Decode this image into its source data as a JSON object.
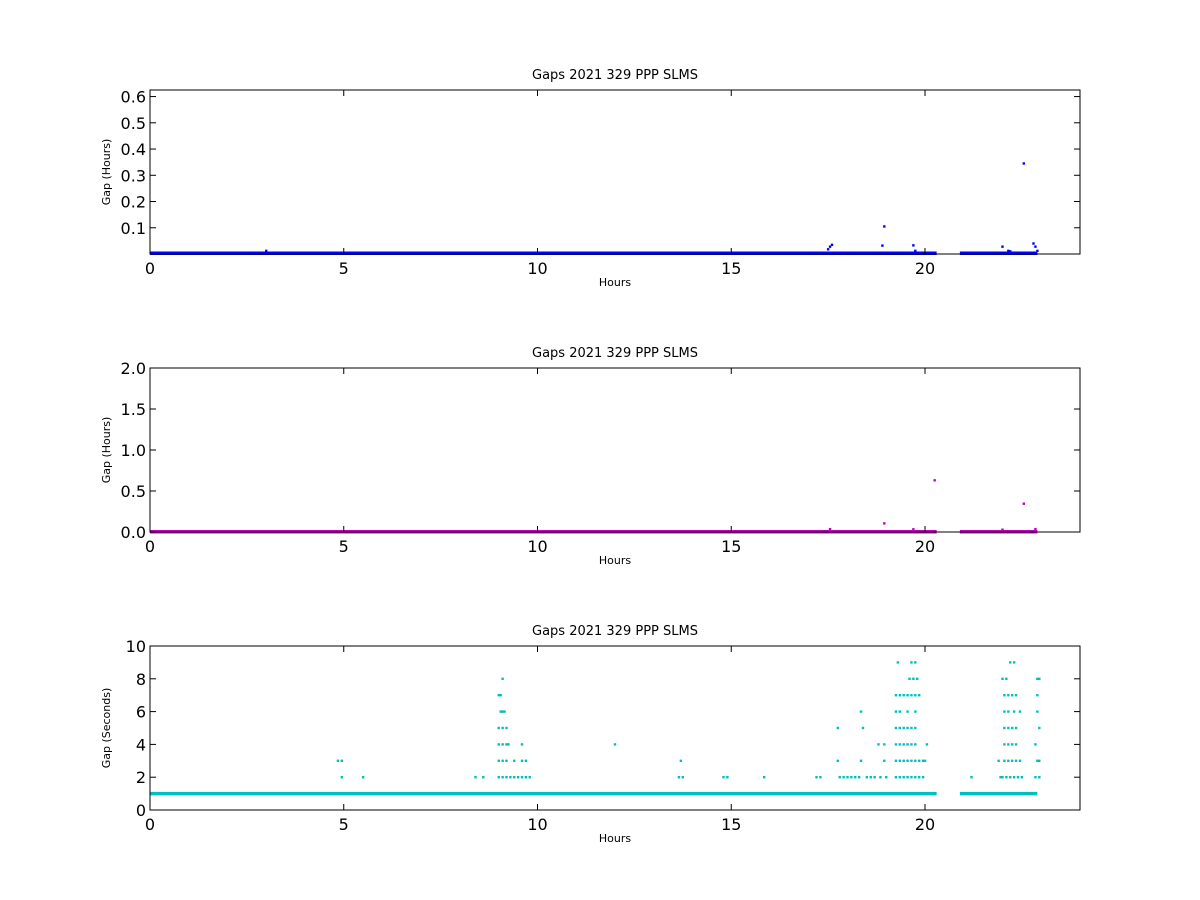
{
  "chart_data": [
    {
      "type": "scatter",
      "title": "Gaps 2021 329 PPP  SLMS",
      "xlabel": "Hours",
      "ylabel": "Gap (Hours)",
      "xlim": [
        0,
        24
      ],
      "ylim": [
        0,
        0.625
      ],
      "xticks": [
        "0",
        "5",
        "10",
        "15",
        "20"
      ],
      "yticks": [
        "0.1",
        "0.2",
        "0.3",
        "0.4",
        "0.5",
        "0.6"
      ],
      "grid": false,
      "color": "#0000ff",
      "baseline": {
        "y": 0.003,
        "segments": [
          [
            0,
            20.3
          ],
          [
            20.9,
            22.9
          ]
        ]
      },
      "points": [
        [
          3.0,
          0.012
        ],
        [
          17.5,
          0.018
        ],
        [
          17.55,
          0.028
        ],
        [
          17.6,
          0.035
        ],
        [
          18.9,
          0.032
        ],
        [
          18.95,
          0.105
        ],
        [
          19.7,
          0.033
        ],
        [
          19.75,
          0.012
        ],
        [
          22.0,
          0.028
        ],
        [
          22.15,
          0.012
        ],
        [
          22.2,
          0.01
        ],
        [
          22.55,
          0.345
        ],
        [
          22.8,
          0.04
        ],
        [
          22.85,
          0.028
        ],
        [
          22.9,
          0.012
        ]
      ]
    },
    {
      "type": "scatter",
      "title": "Gaps 2021 329 PPP  SLMS",
      "xlabel": "Hours",
      "ylabel": "Gap (Hours)",
      "xlim": [
        0,
        24
      ],
      "ylim": [
        0,
        2.0
      ],
      "xticks": [
        "0",
        "5",
        "10",
        "15",
        "20"
      ],
      "yticks": [
        "0.0",
        "0.5",
        "1.0",
        "1.5",
        "2.0"
      ],
      "grid": false,
      "color": "#bf00bf",
      "baseline": {
        "y": 0.003,
        "segments": [
          [
            0,
            20.3
          ],
          [
            20.9,
            22.9
          ]
        ]
      },
      "points": [
        [
          17.55,
          0.035
        ],
        [
          18.95,
          0.105
        ],
        [
          19.7,
          0.033
        ],
        [
          20.25,
          0.63
        ],
        [
          22.0,
          0.028
        ],
        [
          22.55,
          0.345
        ],
        [
          22.85,
          0.035
        ]
      ]
    },
    {
      "type": "scatter",
      "title": "Gaps 2021 329 PPP  SLMS",
      "xlabel": "Hours",
      "ylabel": "Gap (Seconds)",
      "xlim": [
        0,
        24
      ],
      "ylim": [
        0,
        10
      ],
      "xticks": [
        "0",
        "5",
        "10",
        "15",
        "20"
      ],
      "yticks": [
        "0",
        "2",
        "4",
        "6",
        "8",
        "10"
      ],
      "grid": false,
      "color": "#00bfbf",
      "baseline": {
        "y": 1,
        "segments": [
          [
            0,
            20.3
          ],
          [
            20.9,
            22.9
          ]
        ]
      },
      "points": [
        [
          4.85,
          3
        ],
        [
          4.95,
          3
        ],
        [
          4.95,
          2
        ],
        [
          5.5,
          2
        ],
        [
          8.4,
          2
        ],
        [
          8.6,
          2
        ],
        [
          9.0,
          7
        ],
        [
          9.05,
          7
        ],
        [
          9.1,
          8
        ],
        [
          9.05,
          6
        ],
        [
          9.1,
          6
        ],
        [
          9.15,
          6
        ],
        [
          9.0,
          5
        ],
        [
          9.1,
          5
        ],
        [
          9.2,
          5
        ],
        [
          9.0,
          4
        ],
        [
          9.1,
          4
        ],
        [
          9.2,
          4
        ],
        [
          9.25,
          4
        ],
        [
          9.6,
          4
        ],
        [
          9.0,
          3
        ],
        [
          9.1,
          3
        ],
        [
          9.2,
          3
        ],
        [
          9.4,
          3
        ],
        [
          9.6,
          3
        ],
        [
          9.7,
          3
        ],
        [
          9.0,
          2
        ],
        [
          9.1,
          2
        ],
        [
          9.2,
          2
        ],
        [
          9.3,
          2
        ],
        [
          9.4,
          2
        ],
        [
          9.5,
          2
        ],
        [
          9.6,
          2
        ],
        [
          9.7,
          2
        ],
        [
          9.8,
          2
        ],
        [
          12.0,
          4
        ],
        [
          13.7,
          3
        ],
        [
          13.65,
          2
        ],
        [
          13.75,
          2
        ],
        [
          14.8,
          2
        ],
        [
          14.9,
          2
        ],
        [
          15.85,
          2
        ],
        [
          17.2,
          2
        ],
        [
          17.3,
          2
        ],
        [
          17.75,
          5
        ],
        [
          17.75,
          3
        ],
        [
          17.8,
          2
        ],
        [
          17.9,
          2
        ],
        [
          18.0,
          2
        ],
        [
          18.1,
          2
        ],
        [
          18.2,
          2
        ],
        [
          18.3,
          2
        ],
        [
          18.35,
          6
        ],
        [
          18.4,
          5
        ],
        [
          18.35,
          3
        ],
        [
          18.5,
          2
        ],
        [
          18.6,
          2
        ],
        [
          18.7,
          2
        ],
        [
          18.8,
          4
        ],
        [
          18.85,
          2
        ],
        [
          18.95,
          4
        ],
        [
          18.95,
          3
        ],
        [
          19.0,
          2
        ],
        [
          19.3,
          9
        ],
        [
          19.25,
          7
        ],
        [
          19.35,
          7
        ],
        [
          19.45,
          7
        ],
        [
          19.55,
          7
        ],
        [
          19.65,
          7
        ],
        [
          19.75,
          7
        ],
        [
          19.25,
          6
        ],
        [
          19.35,
          6
        ],
        [
          19.55,
          6
        ],
        [
          19.75,
          6
        ],
        [
          19.25,
          5
        ],
        [
          19.35,
          5
        ],
        [
          19.45,
          5
        ],
        [
          19.55,
          5
        ],
        [
          19.65,
          5
        ],
        [
          19.75,
          5
        ],
        [
          19.25,
          4
        ],
        [
          19.35,
          4
        ],
        [
          19.45,
          4
        ],
        [
          19.55,
          4
        ],
        [
          19.65,
          4
        ],
        [
          19.75,
          4
        ],
        [
          19.25,
          3
        ],
        [
          19.35,
          3
        ],
        [
          19.45,
          3
        ],
        [
          19.55,
          3
        ],
        [
          19.65,
          3
        ],
        [
          19.75,
          3
        ],
        [
          19.85,
          3
        ],
        [
          19.25,
          2
        ],
        [
          19.35,
          2
        ],
        [
          19.45,
          2
        ],
        [
          19.55,
          2
        ],
        [
          19.65,
          2
        ],
        [
          19.75,
          2
        ],
        [
          19.85,
          2
        ],
        [
          19.95,
          2
        ],
        [
          19.65,
          9
        ],
        [
          19.75,
          9
        ],
        [
          19.6,
          8
        ],
        [
          19.7,
          8
        ],
        [
          19.8,
          8
        ],
        [
          19.85,
          7
        ],
        [
          20.05,
          4
        ],
        [
          19.95,
          3
        ],
        [
          20.0,
          3
        ],
        [
          21.2,
          2
        ],
        [
          21.9,
          3
        ],
        [
          21.95,
          2
        ],
        [
          22.0,
          8
        ],
        [
          22.1,
          8
        ],
        [
          22.2,
          9
        ],
        [
          22.3,
          9
        ],
        [
          22.05,
          7
        ],
        [
          22.15,
          7
        ],
        [
          22.25,
          7
        ],
        [
          22.35,
          7
        ],
        [
          22.05,
          6
        ],
        [
          22.15,
          6
        ],
        [
          22.3,
          6
        ],
        [
          22.45,
          6
        ],
        [
          22.05,
          5
        ],
        [
          22.15,
          5
        ],
        [
          22.25,
          5
        ],
        [
          22.35,
          5
        ],
        [
          22.05,
          4
        ],
        [
          22.15,
          4
        ],
        [
          22.25,
          4
        ],
        [
          22.35,
          4
        ],
        [
          22.05,
          3
        ],
        [
          22.15,
          3
        ],
        [
          22.25,
          3
        ],
        [
          22.35,
          3
        ],
        [
          22.45,
          3
        ],
        [
          22.0,
          2
        ],
        [
          22.1,
          2
        ],
        [
          22.2,
          2
        ],
        [
          22.3,
          2
        ],
        [
          22.4,
          2
        ],
        [
          22.5,
          2
        ],
        [
          22.9,
          8
        ],
        [
          22.95,
          8
        ],
        [
          22.9,
          7
        ],
        [
          22.9,
          6
        ],
        [
          22.95,
          5
        ],
        [
          22.85,
          4
        ],
        [
          22.9,
          3
        ],
        [
          22.95,
          3
        ],
        [
          22.85,
          2
        ],
        [
          22.95,
          2
        ]
      ]
    }
  ]
}
